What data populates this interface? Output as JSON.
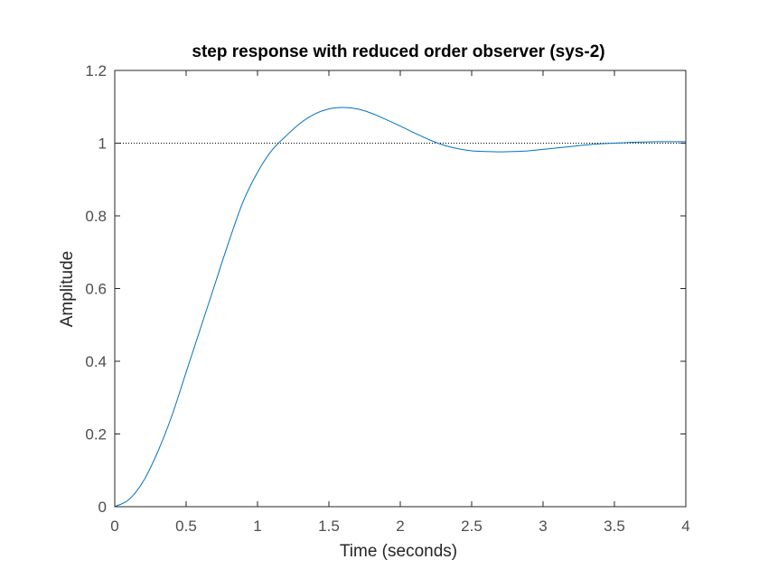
{
  "chart_data": {
    "type": "line",
    "title": "step response with reduced order observer (sys-2)",
    "xlabel": "Time (seconds)",
    "ylabel": "Amplitude",
    "xlim": [
      0,
      4
    ],
    "ylim": [
      0,
      1.2
    ],
    "xticks": [
      0,
      0.5,
      1,
      1.5,
      2,
      2.5,
      3,
      3.5,
      4
    ],
    "xtick_labels": [
      "0",
      "0.5",
      "1",
      "1.5",
      "2",
      "2.5",
      "3",
      "3.5",
      "4"
    ],
    "yticks": [
      0,
      0.2,
      0.4,
      0.6,
      0.8,
      1,
      1.2
    ],
    "ytick_labels": [
      "0",
      "0.2",
      "0.4",
      "0.6",
      "0.8",
      "1",
      "1.2"
    ],
    "grid": false,
    "reference_line": {
      "y": 1,
      "style": "dotted",
      "color": "#000000"
    },
    "series": [
      {
        "color": "#0072bd",
        "x": [
          0,
          0.1,
          0.2,
          0.3,
          0.4,
          0.5,
          0.6,
          0.7,
          0.8,
          0.9,
          1.0,
          1.1,
          1.2,
          1.3,
          1.4,
          1.5,
          1.6,
          1.7,
          1.8,
          1.9,
          2.0,
          2.1,
          2.2,
          2.3,
          2.4,
          2.5,
          2.6,
          2.7,
          2.8,
          2.9,
          3.0,
          3.1,
          3.2,
          3.3,
          3.4,
          3.5,
          3.6,
          3.7,
          3.8,
          3.9,
          4.0
        ],
        "y": [
          0,
          0.02,
          0.07,
          0.15,
          0.25,
          0.37,
          0.49,
          0.61,
          0.73,
          0.84,
          0.92,
          0.98,
          1.02,
          1.055,
          1.08,
          1.094,
          1.098,
          1.094,
          1.082,
          1.065,
          1.047,
          1.028,
          1.01,
          0.995,
          0.985,
          0.979,
          0.977,
          0.976,
          0.977,
          0.979,
          0.983,
          0.987,
          0.991,
          0.995,
          0.998,
          1.0,
          1.002,
          1.003,
          1.004,
          1.004,
          1.004
        ]
      }
    ]
  }
}
